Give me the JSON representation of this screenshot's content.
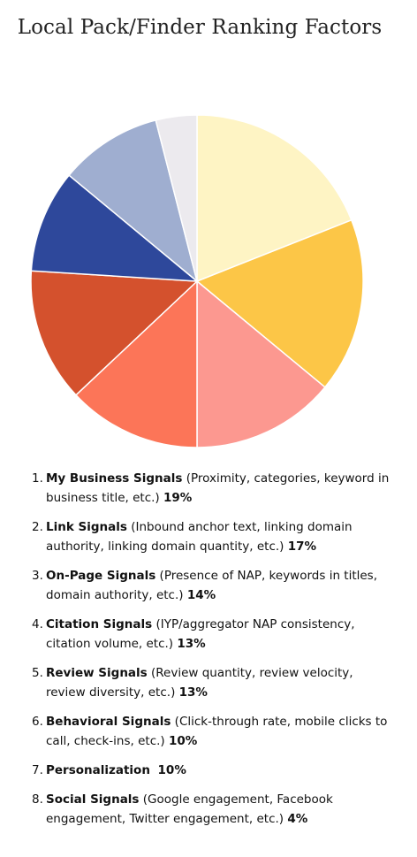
{
  "chart_data": {
    "type": "pie",
    "title": "Local Pack/Finder Ranking Factors",
    "slices": [
      {
        "number": "1.",
        "name": "My Business Signals",
        "detail": "(Proximity, categories, keyword in business title, etc.)",
        "percent_label": "19%",
        "value": 19,
        "color": "#FEF4C4"
      },
      {
        "number": "2.",
        "name": "Link Signals",
        "detail": "(Inbound anchor text, linking domain authority, linking domain quantity, etc.)",
        "percent_label": "17%",
        "value": 17,
        "color": "#FCC647"
      },
      {
        "number": "3.",
        "name": "On-Page Signals",
        "detail": "(Presence of NAP, keywords in titles, domain authority, etc.)",
        "percent_label": "14%",
        "value": 14,
        "color": "#FC9890"
      },
      {
        "number": "4.",
        "name": "Citation Signals",
        "detail": "(IYP/aggregator NAP consistency, citation volume, etc.)",
        "percent_label": "13%",
        "value": 13,
        "color": "#FC7558"
      },
      {
        "number": "5.",
        "name": "Review Signals",
        "detail": "(Review quantity, review velocity, review diversity, etc.)",
        "percent_label": "13%",
        "value": 13,
        "color": "#D4512D"
      },
      {
        "number": "6.",
        "name": "Behavioral Signals",
        "detail": "(Click-through rate, mobile clicks to call, check-ins, etc.)",
        "percent_label": "10%",
        "value": 10,
        "color": "#2E489B"
      },
      {
        "number": "7.",
        "name": "Personalization",
        "detail": "",
        "percent_label": "10%",
        "value": 10,
        "color": "#9FAED0"
      },
      {
        "number": "8.",
        "name": "Social Signals",
        "detail": "(Google engagement, Facebook engagement, Twitter engagement, etc.)",
        "percent_label": "4%",
        "value": 4,
        "color": "#ECEAEE"
      }
    ],
    "start_angle_deg": 0,
    "direction": "clockwise",
    "legend_placement": "bottom"
  }
}
